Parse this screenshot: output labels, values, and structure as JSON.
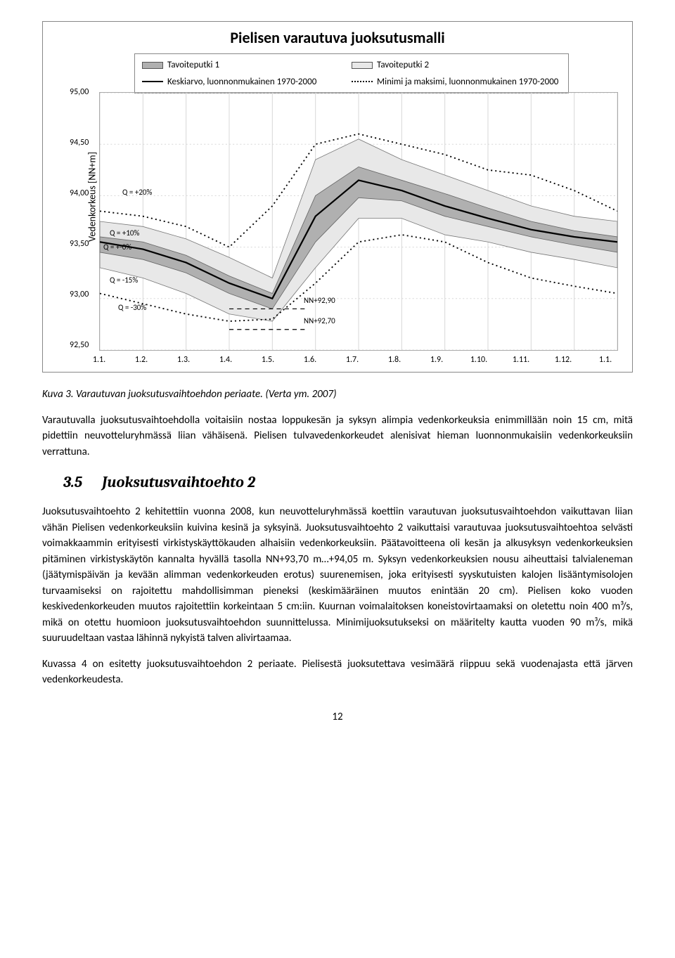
{
  "chart": {
    "title": "Pielisen varautuva juoksutusmalli",
    "legend": {
      "tavoiteputki1": "Tavoiteputki 1",
      "tavoiteputki2": "Tavoiteputki 2",
      "keskiarvo": "Keskiarvo, luonnonmukainen 1970-2000",
      "minmax": "Minimi ja maksimi, luonnonmukainen 1970-2000"
    },
    "y_axis_label": "Vedenkorkeus [NN+m]",
    "y_ticks": [
      "95,00",
      "94,50",
      "94,00",
      "93,50",
      "93,00",
      "92,50"
    ],
    "y_values": [
      95.0,
      94.5,
      94.0,
      93.5,
      93.0,
      92.5
    ],
    "x_ticks": [
      "1.1.",
      "1.2.",
      "1.3.",
      "1.4.",
      "1.5.",
      "1.6.",
      "1.7.",
      "1.8.",
      "1.9.",
      "1.10.",
      "1.11.",
      "1.12.",
      "1.1."
    ],
    "annotations": {
      "q_plus20": "Q = +20%",
      "q_plus10": "Q = +10%",
      "q_pm0": "Q = +-0%",
      "q_minus15": "Q = -15%",
      "q_minus30": "Q = -30%",
      "nn9290": "NN+92,90",
      "nn9270": "NN+92,70"
    },
    "colors": {
      "outer_band": "#e8e8e8",
      "inner_band": "#b0b0b0",
      "mean_line": "#000000",
      "dotted_line": "#000000",
      "grid": "#d8d8d8",
      "border": "#888888",
      "background": "#ffffff"
    },
    "bands": {
      "outer_top": [
        93.75,
        93.7,
        93.58,
        93.4,
        93.2,
        94.35,
        94.55,
        94.35,
        94.2,
        94.05,
        93.9,
        93.8,
        93.75
      ],
      "outer_bottom": [
        93.3,
        93.2,
        93.05,
        92.85,
        92.78,
        93.3,
        93.78,
        93.78,
        93.62,
        93.55,
        93.45,
        93.38,
        93.3
      ],
      "inner_top": [
        93.6,
        93.55,
        93.42,
        93.22,
        93.05,
        94.0,
        94.28,
        94.15,
        94.02,
        93.88,
        93.75,
        93.66,
        93.6
      ],
      "inner_bottom": [
        93.45,
        93.38,
        93.25,
        93.05,
        92.9,
        93.55,
        93.98,
        93.95,
        93.8,
        93.7,
        93.6,
        93.52,
        93.45
      ],
      "mean": [
        93.55,
        93.48,
        93.35,
        93.15,
        93.0,
        93.8,
        94.15,
        94.05,
        93.9,
        93.78,
        93.67,
        93.6,
        93.55
      ],
      "max": [
        93.85,
        93.8,
        93.7,
        93.5,
        93.9,
        94.5,
        94.6,
        94.5,
        94.4,
        94.25,
        94.2,
        94.05,
        93.85
      ],
      "min": [
        93.05,
        92.95,
        92.85,
        92.78,
        92.8,
        93.15,
        93.55,
        93.62,
        93.55,
        93.35,
        93.2,
        93.12,
        93.05
      ]
    }
  },
  "caption": "Kuva 3. Varautuvan juoksutusvaihtoehdon periaate. (Verta ym. 2007)",
  "para1": "Varautuvalla juoksutusvaihtoehdolla voitaisiin nostaa loppukesän ja syksyn alimpia vedenkorkeuksia enimmillään noin 15 cm, mitä pidettiin neuvotteluryhmässä liian vähäisenä. Pielisen tulvavedenkorkeudet alenisivat hieman luonnonmukaisiin vedenkorkeuksiin verrattuna.",
  "section": {
    "num": "3.5",
    "title": "Juoksutusvaihtoehto 2"
  },
  "para2": "Juoksutusvaihtoehto 2 kehitettiin vuonna 2008, kun neuvotteluryhmässä koettiin varautuvan juoksutusvaihtoehdon vaikuttavan liian vähän Pielisen vedenkorkeuksiin kuivina kesinä ja syksyinä. Juoksutusvaihtoehto 2 vaikuttaisi varautuvaa juoksutusvaihtoehtoa selvästi voimakkaammin erityisesti virkistyskäyttökauden alhaisiin vedenkorkeuksiin. Päätavoitteena oli kesän ja alkusyksyn vedenkorkeuksien pitäminen virkistyskäytön kannalta hyvällä tasolla NN+93,70 m…+94,05 m. Syksyn vedenkorkeuksien nousu aiheuttaisi talvialeneman (jäätymispäivän ja kevään alimman vedenkorkeuden erotus) suurenemisen, joka erityisesti syyskutuisten kalojen lisääntymisolojen turvaamiseksi on rajoitettu mahdollisimman pieneksi (keskimääräinen muutos enintään 20 cm). Pielisen koko vuoden keskivedenkorkeuden muutos rajoitettiin korkeintaan 5 cm:iin. Kuurnan voimalaitoksen koneistovirtaamaksi on oletettu noin 400 m³/s, mikä on otettu huomioon juoksutusvaihtoehdon suunnittelussa. Minimijuoksutukseksi on määritelty kautta vuoden 90 m³/s, mikä suuruudeltaan vastaa lähinnä nykyistä talven alivirtaamaa.",
  "para3": "Kuvassa 4 on esitetty juoksutusvaihtoehdon 2 periaate. Pielisestä juoksutettava vesimäärä riippuu sekä vuodenajasta että järven vedenkorkeudesta.",
  "page_number": "12"
}
